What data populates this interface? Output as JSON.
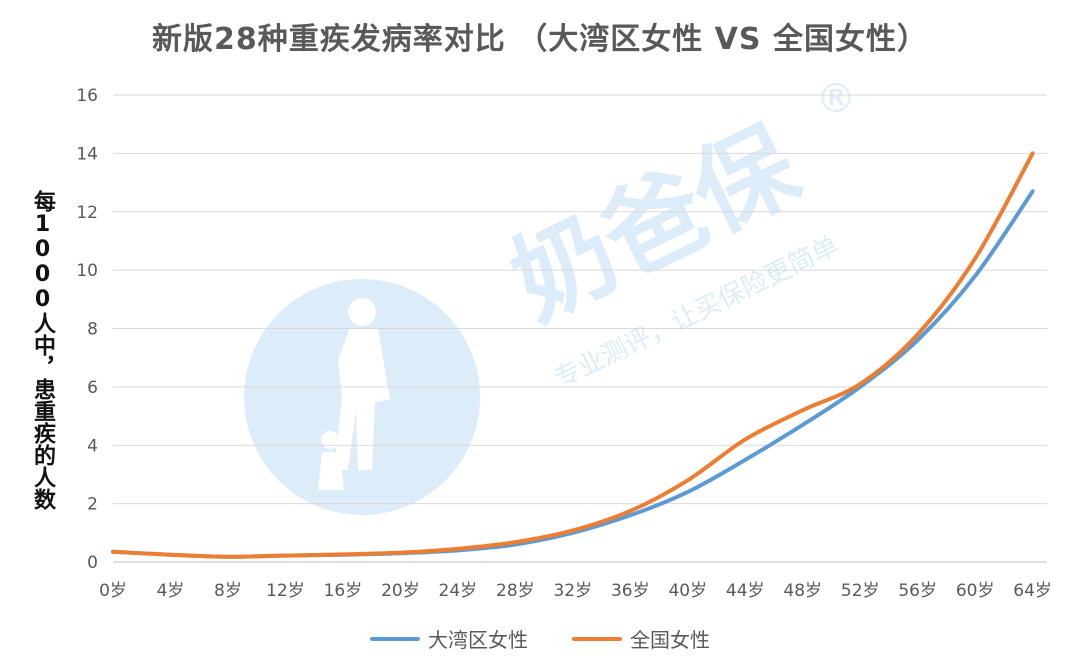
{
  "chart_data": {
    "type": "line",
    "title": "新版28种重疾发病率对比 （大湾区女性 VS 全国女性）",
    "xlabel": "",
    "ylabel": "每1000人中，患重疾的人数",
    "xlim": [
      0,
      65
    ],
    "ylim": [
      0,
      16
    ],
    "yticks": [
      0,
      2,
      4,
      6,
      8,
      10,
      12,
      14,
      16
    ],
    "xticks": [
      0,
      4,
      8,
      12,
      16,
      20,
      24,
      28,
      32,
      36,
      40,
      44,
      48,
      52,
      56,
      60,
      64
    ],
    "xtick_labels": [
      "0岁",
      "4岁",
      "8岁",
      "12岁",
      "16岁",
      "20岁",
      "24岁",
      "28岁",
      "32岁",
      "36岁",
      "40岁",
      "44岁",
      "48岁",
      "52岁",
      "56岁",
      "60岁",
      "64岁"
    ],
    "grid": "horizontal",
    "legend_position": "bottom",
    "x": [
      0,
      4,
      8,
      12,
      16,
      20,
      24,
      28,
      32,
      36,
      40,
      44,
      48,
      52,
      56,
      60,
      64
    ],
    "series": [
      {
        "name": "大湾区女性",
        "color": "#5B9BD5",
        "values": [
          0.35,
          0.25,
          0.18,
          0.22,
          0.25,
          0.3,
          0.4,
          0.6,
          1.0,
          1.6,
          2.4,
          3.5,
          4.7,
          6.0,
          7.6,
          9.8,
          12.7
        ]
      },
      {
        "name": "全国女性",
        "color": "#ED7D31",
        "values": [
          0.35,
          0.25,
          0.18,
          0.22,
          0.26,
          0.32,
          0.45,
          0.68,
          1.08,
          1.75,
          2.8,
          4.2,
          5.2,
          6.1,
          7.8,
          10.4,
          14.0
        ]
      }
    ],
    "watermark": {
      "brand": "奶爸保",
      "slogan": "专业测评，让买保险更简单",
      "registered_mark": "®",
      "color": "#9CC9EC"
    }
  }
}
